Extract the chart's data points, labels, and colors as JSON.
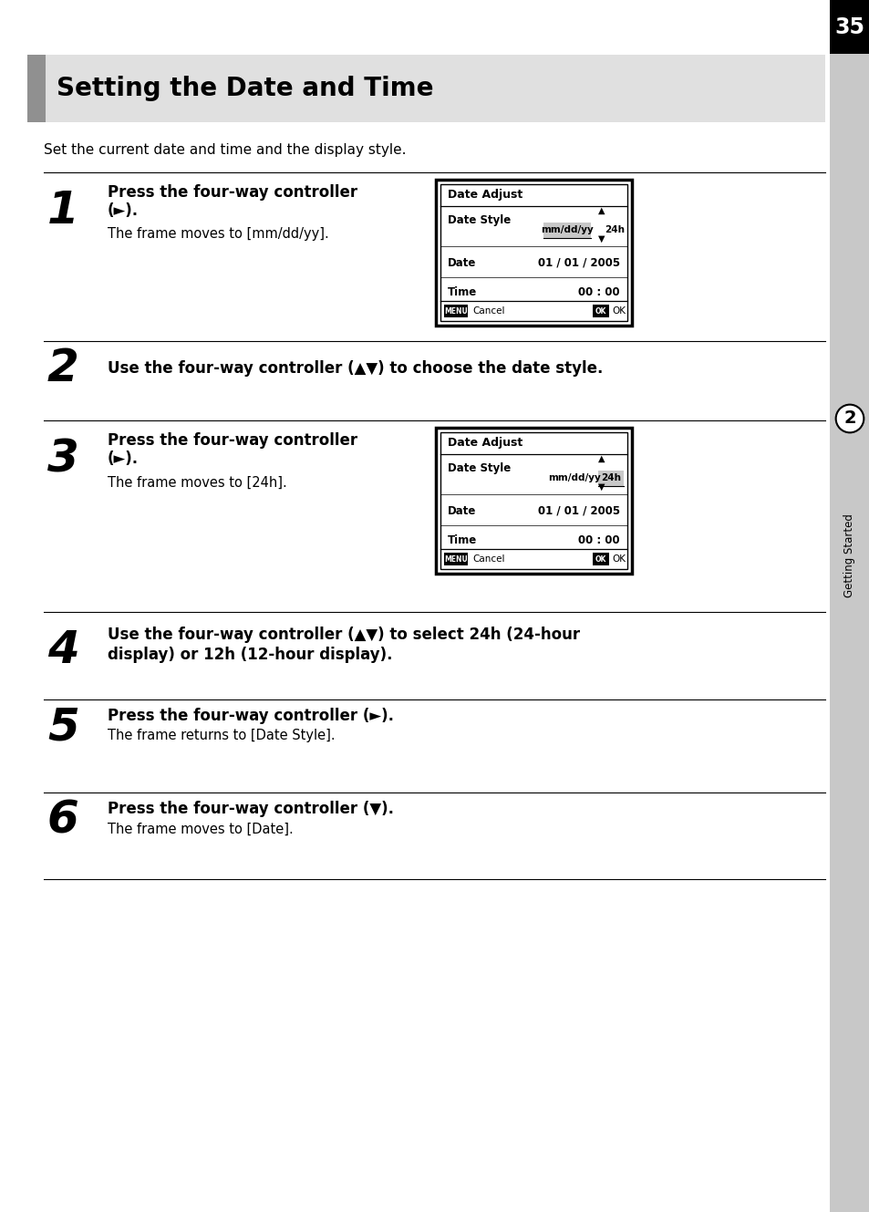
{
  "page_number": "35",
  "title": "Setting the Date and Time",
  "intro_text": "Set the current date and time and the display style.",
  "bg_color": "#ffffff",
  "sidebar_color": "#c0c0c0",
  "page_num_bg": "#000000",
  "title_bar_color": "#b0b0b0",
  "title_accent_color": "#888888",
  "title_bg_color": "#d8d8d8",
  "screens": [
    {
      "title": "Date Adjust",
      "highlight_col": "mm/dd/yy"
    },
    {
      "title": "Date Adjust",
      "highlight_col": "24h"
    }
  ]
}
